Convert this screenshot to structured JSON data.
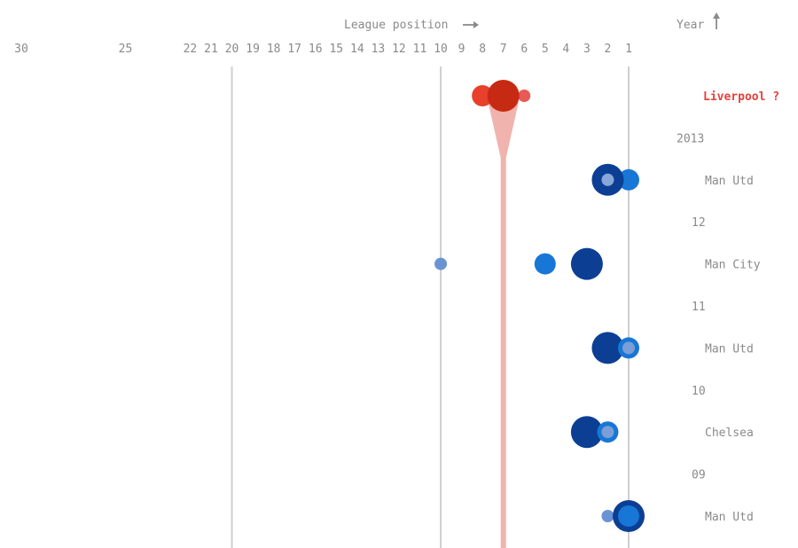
{
  "chart_data": {
    "type": "scatter",
    "x_axis": {
      "title": "League position",
      "ticks": [
        30,
        25,
        22,
        21,
        20,
        19,
        18,
        17,
        16,
        15,
        14,
        13,
        12,
        11,
        10,
        9,
        8,
        7,
        6,
        5,
        4,
        3,
        2,
        1
      ],
      "reference_lines": [
        20,
        10,
        1
      ]
    },
    "y_axis": {
      "title": "Year",
      "year_labels": [
        "2013",
        "12",
        "11",
        "10",
        "09"
      ]
    },
    "highlight_line": {
      "position": 7,
      "color": "#f0b3ad"
    },
    "rows": [
      {
        "team": "Liverpool ?",
        "highlight": true,
        "points": [
          {
            "position": 8,
            "size": "medium",
            "color": "#e8402a"
          },
          {
            "position": 6,
            "size": "small",
            "color": "#e85a55"
          },
          {
            "position": 7,
            "size": "large",
            "color": "#c62a12"
          }
        ]
      },
      {
        "team": "Man Utd",
        "highlight": false,
        "points": [
          {
            "position": 1,
            "size": "medium",
            "color": "#1877d6"
          },
          {
            "position": 2,
            "size": "large",
            "color": "#0c3f94"
          },
          {
            "position": 2,
            "size": "small",
            "color": "#8aa6d8"
          }
        ]
      },
      {
        "team": "Man City",
        "highlight": false,
        "points": [
          {
            "position": 10,
            "size": "small",
            "color": "#6a93d4"
          },
          {
            "position": 5,
            "size": "medium",
            "color": "#1877d6"
          },
          {
            "position": 3,
            "size": "large",
            "color": "#0c3f94"
          }
        ]
      },
      {
        "team": "Man Utd",
        "highlight": false,
        "points": [
          {
            "position": 2,
            "size": "large",
            "color": "#0c3f94"
          },
          {
            "position": 1,
            "size": "medium",
            "color": "#1877d6"
          },
          {
            "position": 1,
            "size": "small",
            "color": "#7b9ed6"
          }
        ]
      },
      {
        "team": "Chelsea",
        "highlight": false,
        "points": [
          {
            "position": 3,
            "size": "large",
            "color": "#0c3f94"
          },
          {
            "position": 2,
            "size": "medium",
            "color": "#1877d6"
          },
          {
            "position": 2,
            "size": "small",
            "color": "#7b9ed6"
          }
        ]
      },
      {
        "team": "Man Utd",
        "highlight": false,
        "points": [
          {
            "position": 2,
            "size": "small",
            "color": "#6a93d4"
          },
          {
            "position": 1,
            "size": "large",
            "color": "#0c3f94"
          },
          {
            "position": 1,
            "size": "medium",
            "color": "#1877d6"
          }
        ]
      }
    ]
  }
}
